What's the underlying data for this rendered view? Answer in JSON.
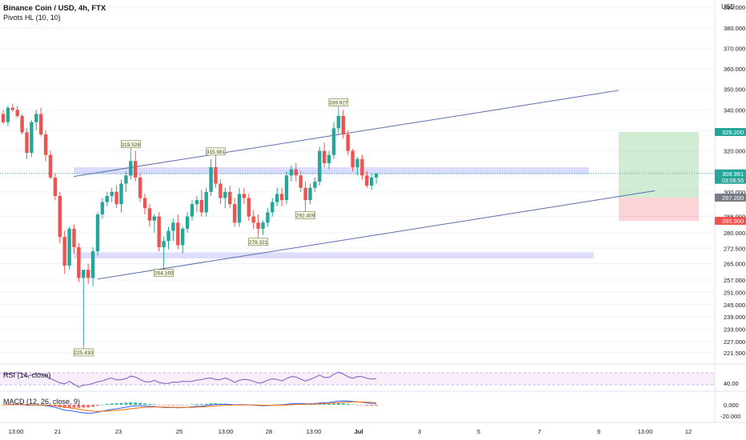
{
  "header": {
    "title": "Binance Coin / USD, 4h, FTX",
    "indicator": "Pivots HL (10, 10)",
    "currency": "USD"
  },
  "price_axis": {
    "ticks": [
      "390.000",
      "380.000",
      "370.000",
      "360.000",
      "350.000",
      "340.000",
      "330.000",
      "320.000",
      "310.000",
      "300.000",
      "288.000",
      "280.000",
      "272.500",
      "265.000",
      "257.000",
      "251.000",
      "245.000",
      "239.000",
      "233.000",
      "227.000",
      "221.500"
    ],
    "labels": [
      {
        "text": "308.981",
        "sub": "03:08:55",
        "value": 308.981,
        "color": "#26a69a"
      },
      {
        "text": "329.200",
        "value": 329.2,
        "color": "#26a69a"
      },
      {
        "text": "297.200",
        "value": 297.2,
        "color": "#787b86"
      },
      {
        "text": "285.900",
        "value": 285.9,
        "color": "#ef5350"
      }
    ]
  },
  "time_axis": {
    "ticks": [
      "13:00",
      "21",
      "23",
      "25",
      "13:00",
      "28",
      "13:00",
      "Jul",
      "3",
      "5",
      "7",
      "9",
      "13:00",
      "12"
    ]
  },
  "pivots": [
    {
      "label": "319.528",
      "value": 319.528,
      "type": "high"
    },
    {
      "label": "315.981",
      "value": 315.981,
      "type": "high"
    },
    {
      "label": "339.927",
      "value": 339.927,
      "type": "high"
    },
    {
      "label": "264.160",
      "value": 264.16,
      "type": "low"
    },
    {
      "label": "279.321",
      "value": 279.321,
      "type": "low"
    },
    {
      "label": "292.409",
      "value": 292.409,
      "type": "low"
    },
    {
      "label": "225.430",
      "value": 225.43,
      "type": "low"
    }
  ],
  "rsi": {
    "legend": "RSI (14, close)",
    "axis_label": "40.00"
  },
  "macd": {
    "legend": "MACD (12, 26, close, 9)",
    "axis_label": "0.000",
    "axis_label2": "-20.000"
  },
  "chart_data": {
    "type": "candlestick",
    "symbol": "Binance Coin / USD",
    "interval": "4h",
    "exchange": "FTX",
    "ylim": [
      218,
      392
    ],
    "last_price": 308.981,
    "trade_box": {
      "entry": 297.2,
      "target": 329.2,
      "stop": 285.9
    },
    "zones": [
      {
        "from": 308.5,
        "to": 312
      },
      {
        "from": 267.5,
        "to": 270.5
      }
    ],
    "ohlc": [
      [
        338,
        340,
        333,
        334
      ],
      [
        334,
        342,
        332,
        341
      ],
      [
        341,
        343,
        339,
        340
      ],
      [
        340,
        342,
        336,
        337
      ],
      [
        337,
        338,
        328,
        329
      ],
      [
        329,
        331,
        316,
        319
      ],
      [
        319,
        335,
        317,
        334
      ],
      [
        334,
        340,
        330,
        338
      ],
      [
        338,
        341,
        327,
        328
      ],
      [
        328,
        330,
        315,
        318
      ],
      [
        318,
        320,
        306,
        307
      ],
      [
        307,
        309,
        296,
        298
      ],
      [
        298,
        300,
        275,
        278
      ],
      [
        278,
        281,
        260,
        264
      ],
      [
        264,
        283,
        262,
        282
      ],
      [
        282,
        284,
        270,
        273
      ],
      [
        273,
        275,
        256,
        258
      ],
      [
        258,
        262,
        225.43,
        262
      ],
      [
        262,
        265,
        255,
        258
      ],
      [
        258,
        273,
        254,
        271
      ],
      [
        271,
        290,
        269,
        289
      ],
      [
        289,
        297,
        287,
        295
      ],
      [
        295,
        300,
        293,
        298
      ],
      [
        298,
        302,
        295,
        300
      ],
      [
        300,
        303,
        292,
        294
      ],
      [
        294,
        306,
        290,
        304
      ],
      [
        304,
        310,
        300,
        308
      ],
      [
        308,
        319.5,
        306,
        315
      ],
      [
        315,
        320,
        305,
        307
      ],
      [
        307,
        309,
        295,
        297
      ],
      [
        297,
        299,
        289,
        292
      ],
      [
        292,
        294,
        283,
        286
      ],
      [
        286,
        289,
        280,
        288
      ],
      [
        288,
        290,
        271,
        273
      ],
      [
        273,
        278,
        264.16,
        276
      ],
      [
        276,
        283,
        272,
        281
      ],
      [
        281,
        287,
        276,
        285
      ],
      [
        285,
        289,
        272,
        274
      ],
      [
        274,
        283,
        270,
        282
      ],
      [
        282,
        290,
        280,
        288
      ],
      [
        288,
        296,
        286,
        294
      ],
      [
        294,
        298,
        290,
        296
      ],
      [
        296,
        301,
        288,
        290
      ],
      [
        290,
        302,
        288,
        300
      ],
      [
        300,
        316,
        298,
        312
      ],
      [
        312,
        315.98,
        302,
        304
      ],
      [
        304,
        306,
        294,
        297
      ],
      [
        297,
        302,
        292,
        300
      ],
      [
        300,
        303,
        292,
        294
      ],
      [
        294,
        297,
        283,
        285
      ],
      [
        285,
        302,
        283,
        299
      ],
      [
        299,
        302,
        294,
        297
      ],
      [
        297,
        299,
        286,
        288
      ],
      [
        288,
        291,
        282,
        285
      ],
      [
        285,
        289,
        279.32,
        282
      ],
      [
        282,
        286,
        279,
        285
      ],
      [
        285,
        292,
        283,
        290
      ],
      [
        290,
        297,
        288,
        295
      ],
      [
        295,
        302,
        293,
        299
      ],
      [
        299,
        302,
        293,
        296
      ],
      [
        296,
        310,
        294,
        308
      ],
      [
        308,
        313,
        305,
        311
      ],
      [
        311,
        314,
        305,
        308
      ],
      [
        308,
        310,
        300,
        302
      ],
      [
        302,
        305,
        292.41,
        296
      ],
      [
        296,
        304,
        294,
        302
      ],
      [
        302,
        307,
        300,
        305
      ],
      [
        305,
        322,
        303,
        320
      ],
      [
        320,
        324,
        312,
        314
      ],
      [
        314,
        320,
        311,
        318
      ],
      [
        318,
        334,
        316,
        331
      ],
      [
        331,
        339.93,
        328,
        337
      ],
      [
        337,
        340,
        326,
        328
      ],
      [
        328,
        330,
        318,
        320
      ],
      [
        320,
        321,
        310,
        312
      ],
      [
        312,
        317,
        308,
        316
      ],
      [
        316,
        318,
        306,
        308
      ],
      [
        308,
        310,
        302,
        303
      ],
      [
        303,
        309,
        301,
        307
      ],
      [
        307,
        309,
        304,
        308.98
      ]
    ]
  }
}
